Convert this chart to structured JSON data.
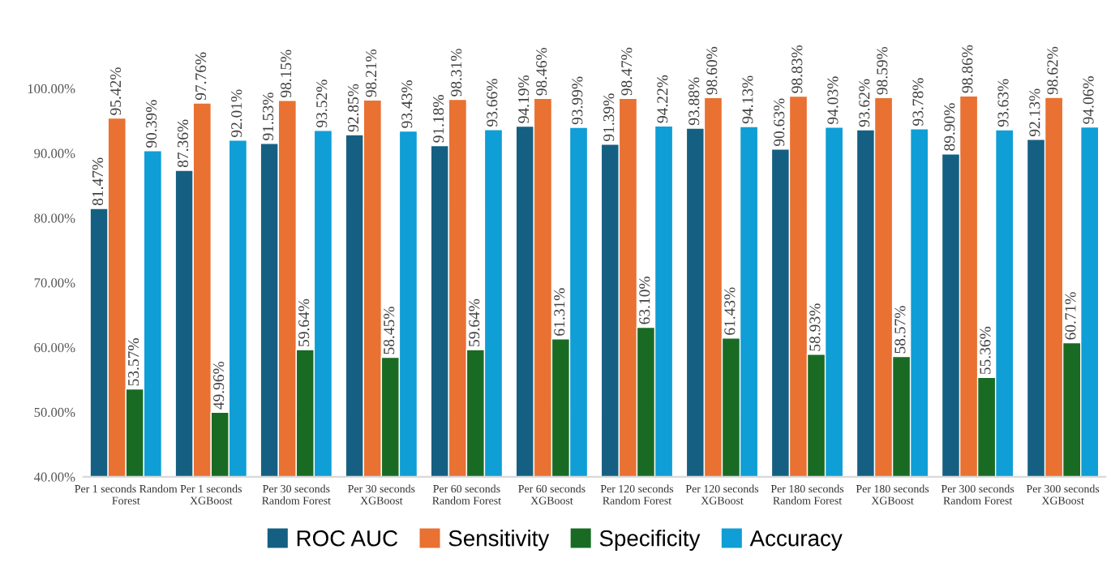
{
  "chart_data": {
    "type": "bar",
    "categories": [
      "Per 1 seconds Random\nForest",
      "Per 1 seconds\nXGBoost",
      "Per 30 seconds\nRandom Forest",
      "Per 30 seconds\nXGBoost",
      "Per 60 seconds\nRandom Forest",
      "Per 60 seconds\nXGBoost",
      "Per 120 seconds\nRandom Forest",
      "Per 120 seconds\nXGBoost",
      "Per 180 seconds\nRandom Forest",
      "Per 180 seconds\nXGBoost",
      "Per 300 seconds\nRandom Forest",
      "Per 300 seconds\nXGBoost"
    ],
    "series": [
      {
        "name": "ROC AUC",
        "color": "#156082",
        "values": [
          81.47,
          87.36,
          91.53,
          92.85,
          91.18,
          94.19,
          91.39,
          93.88,
          90.63,
          93.62,
          89.9,
          92.13
        ],
        "value_labels": [
          "81.47%",
          "87.36%",
          "91.53%",
          "92.85%",
          "91.18%",
          "94.19%",
          "91.39%",
          "93.88%",
          "90.63%",
          "93.62%",
          "89.90%",
          "92.13%"
        ]
      },
      {
        "name": "Sensitivity",
        "color": "#e97132",
        "values": [
          95.42,
          97.76,
          98.15,
          98.21,
          98.31,
          98.46,
          98.47,
          98.6,
          98.83,
          98.59,
          98.86,
          98.62
        ],
        "value_labels": [
          "95.42%",
          "97.76%",
          "98.15%",
          "98.21%",
          "98.31%",
          "98.46%",
          "98.47%",
          "98.60%",
          "98.83%",
          "98.59%",
          "98.86%",
          "98.62%"
        ]
      },
      {
        "name": "Specificity",
        "color": "#196b24",
        "values": [
          53.57,
          49.96,
          59.64,
          58.45,
          59.64,
          61.31,
          63.1,
          61.43,
          58.93,
          58.57,
          55.36,
          60.71
        ],
        "value_labels": [
          "53.57%",
          "49.96%",
          "59.64%",
          "58.45%",
          "59.64%",
          "61.31%",
          "63.10%",
          "61.43%",
          "58.93%",
          "58.57%",
          "55.36%",
          "60.71%"
        ]
      },
      {
        "name": "Accuracy",
        "color": "#0f9ed5",
        "values": [
          90.39,
          92.01,
          93.52,
          93.43,
          93.66,
          93.99,
          94.22,
          94.13,
          94.03,
          93.78,
          93.63,
          94.06
        ],
        "value_labels": [
          "90.39%",
          "92.01%",
          "93.52%",
          "93.43%",
          "93.66%",
          "93.99%",
          "94.22%",
          "94.13%",
          "94.03%",
          "93.78%",
          "93.63%",
          "94.06%"
        ]
      }
    ],
    "ylim": [
      40,
      100
    ],
    "yticks": [
      {
        "value": 40,
        "label": "40.00%"
      },
      {
        "value": 50,
        "label": "50.00%"
      },
      {
        "value": 60,
        "label": "60.00%"
      },
      {
        "value": 70,
        "label": "70.00%"
      },
      {
        "value": 80,
        "label": "80.00%"
      },
      {
        "value": 90,
        "label": "90.00%"
      },
      {
        "value": 100,
        "label": "100.00%"
      }
    ],
    "legend": "bottom",
    "grid": false
  }
}
